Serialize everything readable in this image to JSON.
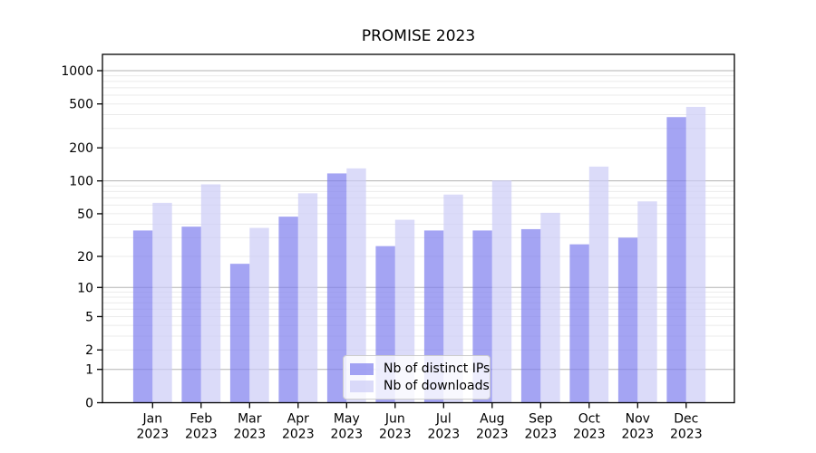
{
  "chart_data": {
    "type": "bar",
    "title": "PROMISE 2023",
    "categories": [
      "Jan",
      "Feb",
      "Mar",
      "Apr",
      "May",
      "Jun",
      "Jul",
      "Aug",
      "Sep",
      "Oct",
      "Nov",
      "Dec"
    ],
    "category_year": "2023",
    "series": [
      {
        "name": "Nb of distinct IPs",
        "color": "rgba(126,126,238,0.7)",
        "values": [
          35,
          38,
          17,
          47,
          117,
          25,
          35,
          35,
          36,
          26,
          30,
          380
        ]
      },
      {
        "name": "Nb of downloads",
        "color": "rgba(204,204,246,0.7)",
        "values": [
          63,
          93,
          37,
          77,
          130,
          44,
          75,
          101,
          51,
          135,
          65,
          470
        ]
      }
    ],
    "xlabel": "",
    "ylabel": "",
    "y_scale": "log1p",
    "ylim": [
      0,
      1400
    ],
    "y_ticks": [
      0,
      1,
      2,
      5,
      10,
      20,
      50,
      100,
      200,
      500,
      1000
    ],
    "y_major_gridlines": [
      1,
      10,
      100,
      1000
    ],
    "y_minor_gridline_decades": [
      1,
      10,
      100
    ],
    "grid": true,
    "legend_position": "lower center",
    "colors": {
      "major_grid": "#b3b3b3",
      "minor_grid": "#ebebeb",
      "axis": "#000000",
      "text": "#000000",
      "background": "#ffffff"
    }
  }
}
